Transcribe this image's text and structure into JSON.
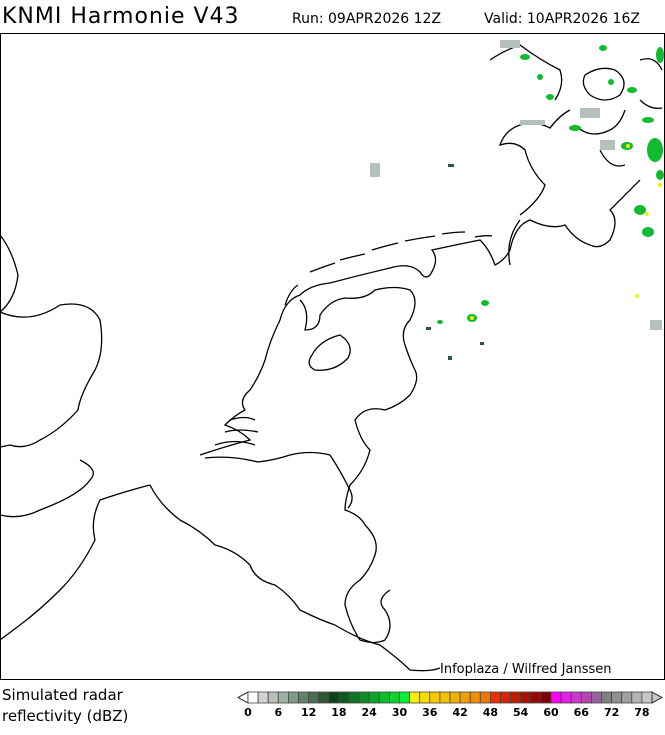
{
  "header": {
    "title": "KNMI Harmonie V43",
    "run": "Run: 09APR2026 12Z",
    "valid": "Valid: 10APR2026 16Z"
  },
  "map": {
    "credit": "Infoplaza / Wilfred Janssen",
    "region": "Netherlands / Belgium / North Sea"
  },
  "legend": {
    "label_line1": "Simulated radar",
    "label_line2": "reflectivity (dBZ)",
    "ticks": [
      "0",
      "6",
      "12",
      "18",
      "24",
      "30",
      "36",
      "42",
      "48",
      "54",
      "60",
      "66",
      "72",
      "78"
    ],
    "colors": [
      "#ffffff",
      "#d2d2d2",
      "#b6c0ba",
      "#9db2a3",
      "#7f9b88",
      "#5f856a",
      "#456f50",
      "#2c5a38",
      "#0b4417",
      "#0b5b1d",
      "#0c7622",
      "#0e8e27",
      "#0fa42b",
      "#10bb2f",
      "#10d234",
      "#10ea38",
      "#f8f000",
      "#f8dc00",
      "#f6cc00",
      "#f4c000",
      "#f2b000",
      "#f0a000",
      "#ee8e00",
      "#ec7a00",
      "#ee3000",
      "#dc2200",
      "#c41a00",
      "#ac1000",
      "#960800",
      "#7e0000",
      "#ff00ff",
      "#e420e4",
      "#cc38cc",
      "#b048b0",
      "#9664a0",
      "#808080",
      "#909090",
      "#a0a0a0",
      "#b4b4b4",
      "#c6c6c6"
    ]
  }
}
